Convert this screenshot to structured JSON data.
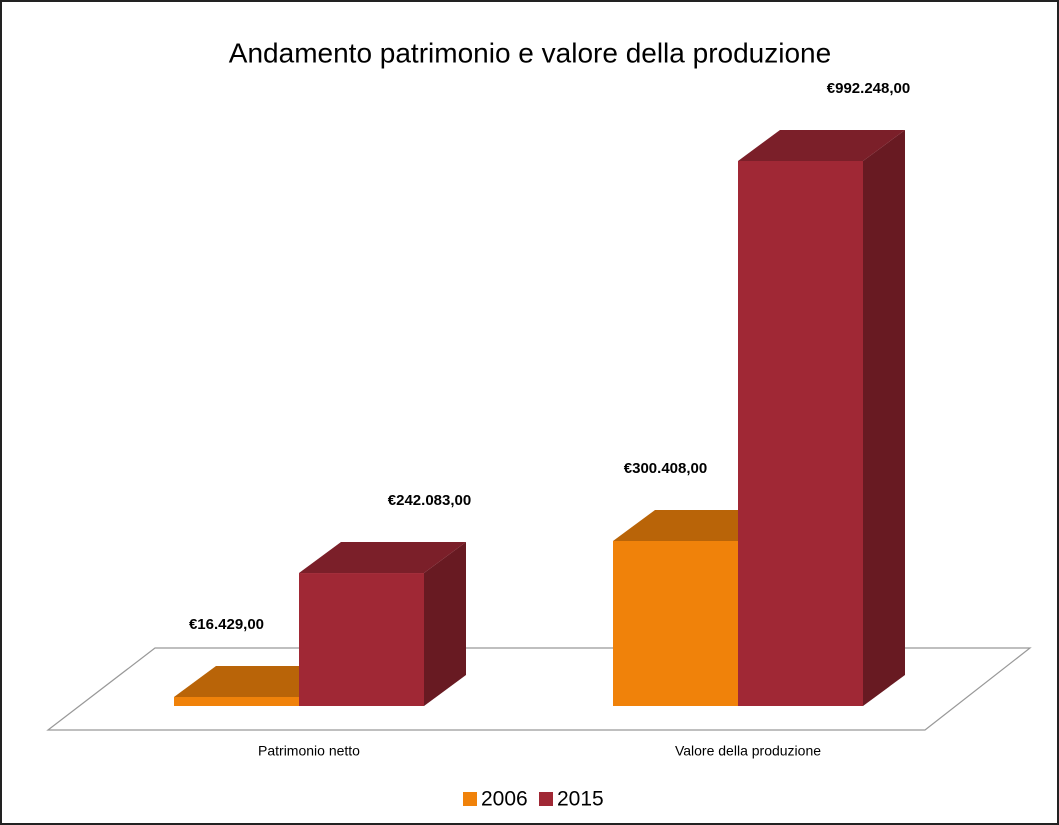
{
  "chart_data": {
    "type": "bar",
    "title": "Andamento patrimonio e valore della produzione",
    "categories": [
      "Patrimonio netto",
      "Valore della produzione"
    ],
    "series": [
      {
        "name": "2006",
        "color": "#f0820a",
        "values": [
          16429,
          300408
        ],
        "value_labels": [
          "€16.429,00",
          "€300.408,00"
        ]
      },
      {
        "name": "2015",
        "color": "#a02835",
        "values": [
          242083,
          992248
        ],
        "value_labels": [
          "€242.083,00",
          "€992.248,00"
        ]
      }
    ]
  }
}
